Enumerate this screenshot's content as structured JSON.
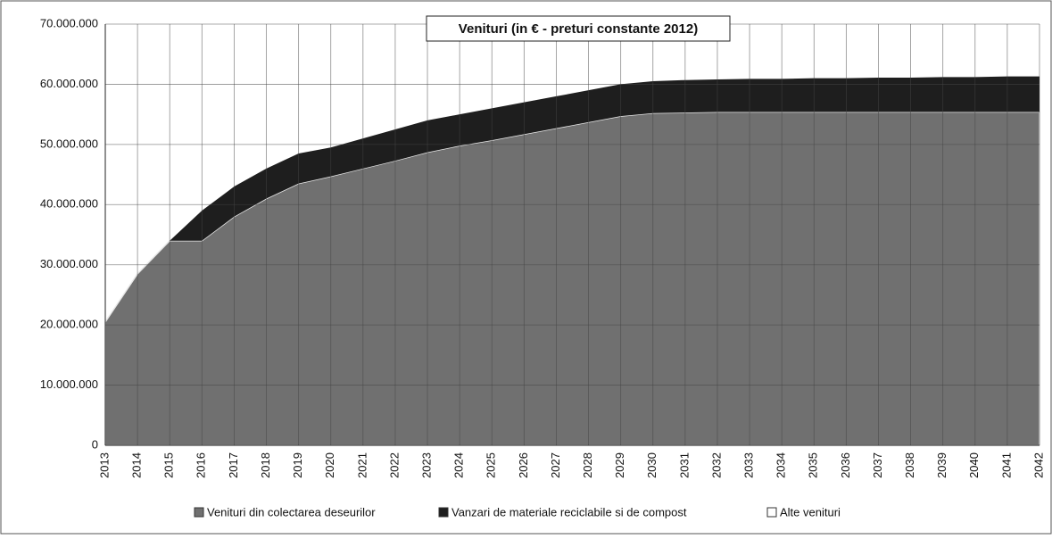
{
  "chart_data": {
    "type": "stacked_area",
    "title": "Venituri (in € - preturi  constante 2012)",
    "categories": [
      "2013",
      "2014",
      "2015",
      "2016",
      "2017",
      "2018",
      "2019",
      "2020",
      "2021",
      "2022",
      "2023",
      "2024",
      "2025",
      "2026",
      "2027",
      "2028",
      "2029",
      "2030",
      "2031",
      "2032",
      "2033",
      "2034",
      "2035",
      "2036",
      "2037",
      "2038",
      "2039",
      "2040",
      "2041",
      "2042"
    ],
    "series": [
      {
        "name": "Venituri din colectarea deseurilor",
        "color": "#707070",
        "values": [
          20500000,
          28500000,
          34000000,
          34000000,
          38000000,
          41000000,
          43500000,
          44700000,
          46000000,
          47300000,
          48700000,
          49800000,
          50700000,
          51700000,
          52700000,
          53700000,
          54700000,
          55200000,
          55300000,
          55400000,
          55400000,
          55400000,
          55400000,
          55400000,
          55400000,
          55400000,
          55400000,
          55400000,
          55400000,
          55400000
        ]
      },
      {
        "name": "Vanzari de materiale reciclabile si de compost",
        "color": "#1e1e1e",
        "values": [
          0,
          0,
          0,
          5000000,
          5000000,
          5000000,
          5000000,
          4800000,
          5000000,
          5200000,
          5300000,
          5200000,
          5300000,
          5300000,
          5300000,
          5300000,
          5300000,
          5300000,
          5400000,
          5400000,
          5500000,
          5500000,
          5600000,
          5600000,
          5700000,
          5700000,
          5800000,
          5800000,
          5900000,
          5900000
        ]
      },
      {
        "name": "Alte venituri",
        "color": "#ffffff",
        "values": [
          0,
          0,
          0,
          0,
          0,
          0,
          0,
          0,
          0,
          0,
          0,
          0,
          0,
          0,
          0,
          0,
          0,
          0,
          0,
          0,
          0,
          0,
          0,
          0,
          0,
          0,
          0,
          0,
          0,
          0
        ]
      }
    ],
    "ylim": [
      0,
      70000000
    ],
    "yticks": [
      0,
      {
        "value": 10000000,
        "label": "10.000.000"
      },
      {
        "value": 20000000,
        "label": "20.000.000"
      },
      {
        "value": 30000000,
        "label": "30.000.000"
      },
      {
        "value": 40000000,
        "label": "40.000.000"
      },
      {
        "value": 50000000,
        "label": "50.000.000"
      },
      {
        "value": 60000000,
        "label": "60.000.000"
      },
      {
        "value": 70000000,
        "label": "70.000.000"
      }
    ],
    "grid": true
  }
}
